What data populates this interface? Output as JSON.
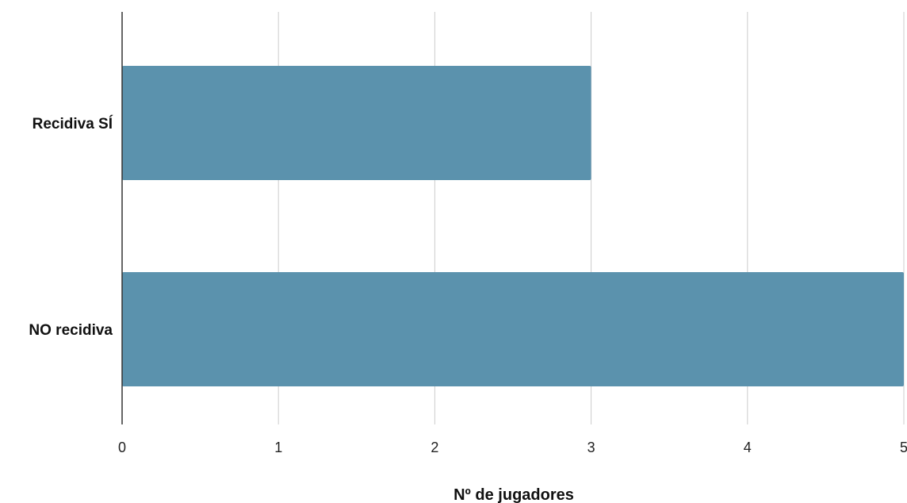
{
  "chart_data": {
    "type": "bar",
    "orientation": "horizontal",
    "title": "",
    "categories": [
      "Recidiva SÍ",
      "NO recidiva"
    ],
    "values": [
      3,
      5
    ],
    "xlabel": "Nº de jugadores",
    "ylabel": "",
    "xlim": [
      0,
      5
    ],
    "xticks": [
      "0",
      "1",
      "2",
      "3",
      "4",
      "5"
    ],
    "grid": "vertical",
    "legend": "none",
    "colors": {
      "bar": "#5b92ad",
      "grid": "#cccccc",
      "axis": "#333333"
    }
  }
}
